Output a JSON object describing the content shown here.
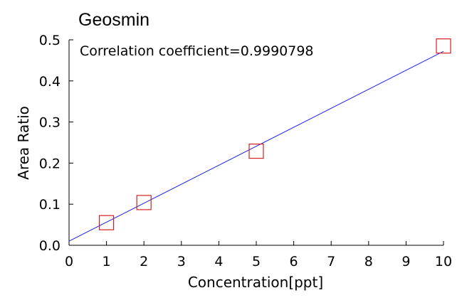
{
  "chart_data": {
    "type": "scatter",
    "title": "Geosmin",
    "annotation": "Correlation coefficient=0.9990798",
    "xlabel": "Concentration[ppt]",
    "ylabel": "Area Ratio",
    "xlim": [
      0,
      10
    ],
    "ylim": [
      0,
      0.5
    ],
    "x_ticks": [
      "0",
      "1",
      "2",
      "3",
      "4",
      "5",
      "6",
      "7",
      "8",
      "9",
      "10"
    ],
    "y_ticks": [
      "0.0",
      "0.1",
      "0.2",
      "0.3",
      "0.4",
      "0.5"
    ],
    "grid": false,
    "series": [
      {
        "kind": "points",
        "marker": "open-square",
        "color": "#d62020",
        "x": [
          1,
          2,
          5,
          10
        ],
        "y": [
          0.055,
          0.104,
          0.229,
          0.485
        ]
      },
      {
        "kind": "fit-line",
        "color": "#1f1fe6",
        "x": [
          0,
          10
        ],
        "y": [
          0.01,
          0.472
        ]
      }
    ]
  }
}
